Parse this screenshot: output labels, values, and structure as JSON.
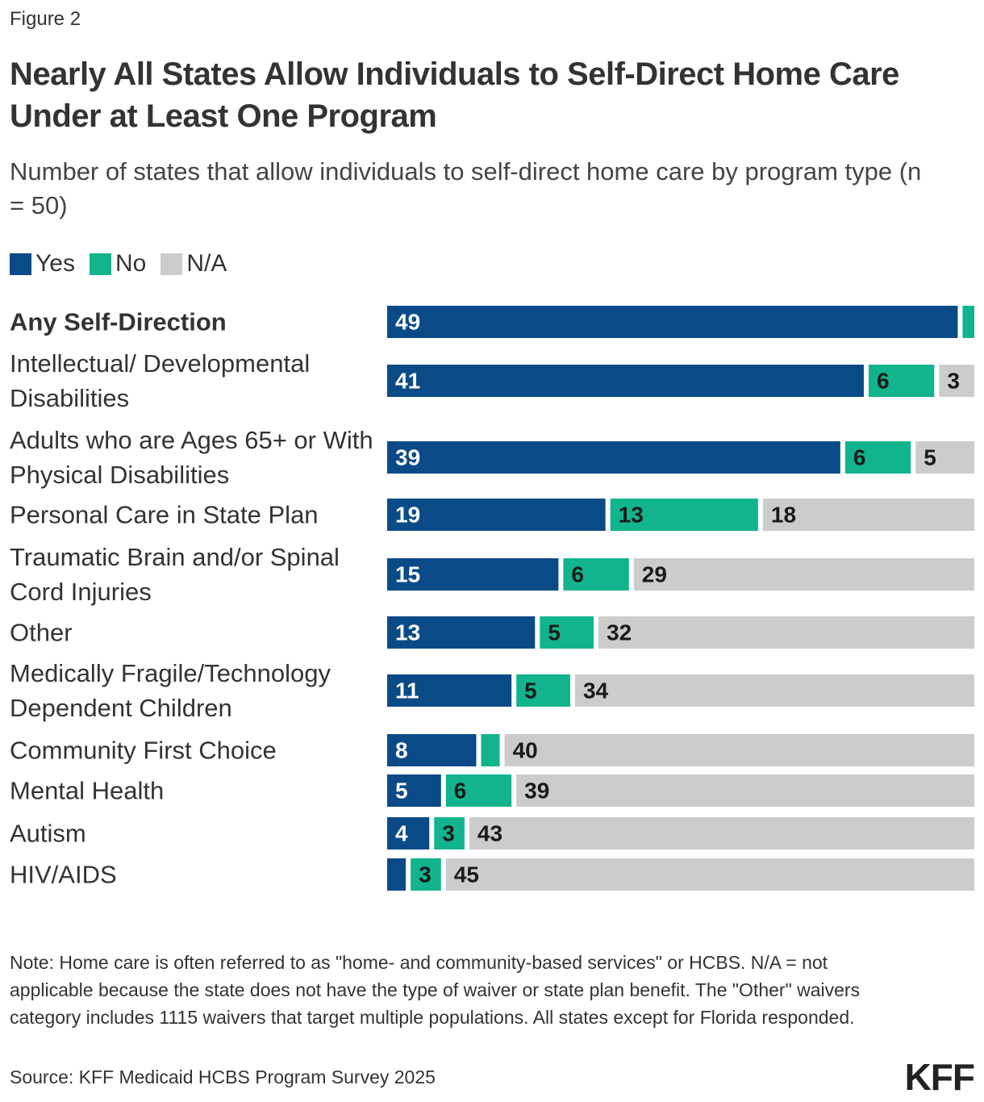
{
  "chart_data": {
    "type": "bar",
    "orientation": "horizontal",
    "stacked": true,
    "figure_label": "Figure 2",
    "title": "Nearly All States Allow Individuals to Self-Direct Home Care Under at Least One Program",
    "subtitle": "Number of states that allow individuals to self-direct home care by program type (n = 50)",
    "categories": [
      "Any Self-Direction",
      "Intellectual/ Developmental Disabilities",
      "Adults who are Ages 65+ or With Physical Disabilities",
      "Personal Care in State Plan",
      "Traumatic Brain and/or Spinal Cord Injuries",
      "Other",
      "Medically Fragile/Technology Dependent Children",
      "Community First Choice",
      "Mental Health",
      "Autism",
      "HIV/AIDS"
    ],
    "xlim": [
      0,
      50
    ],
    "series": [
      {
        "name": "Yes",
        "color": "#0a4a87",
        "label_color": "#ffffff",
        "values": [
          49,
          41,
          39,
          19,
          15,
          13,
          11,
          8,
          5,
          4,
          2
        ],
        "value_labels": [
          "49",
          "41",
          "39",
          "19",
          "15",
          "13",
          "11",
          "8",
          "5",
          "4",
          null
        ]
      },
      {
        "name": "No",
        "color": "#12b48e",
        "label_color": "#1a1a1a",
        "values": [
          1,
          6,
          6,
          13,
          6,
          5,
          5,
          2,
          6,
          3,
          3
        ],
        "value_labels": [
          null,
          "6",
          "6",
          "13",
          "6",
          "5",
          "5",
          null,
          "6",
          "3",
          "3"
        ]
      },
      {
        "name": "N/A",
        "color": "#cccccc",
        "label_color": "#1a1a1a",
        "values": [
          0,
          3,
          5,
          18,
          29,
          32,
          34,
          40,
          39,
          43,
          45
        ],
        "value_labels": [
          null,
          "3",
          "5",
          "18",
          "29",
          "32",
          "34",
          "40",
          "39",
          "43",
          "45"
        ]
      }
    ],
    "legend": "top-left",
    "note": "Note: Home care is often referred to as \"home- and community-based services\" or HCBS. N/A = not applicable because the state does not have the type of waiver or state plan benefit. The \"Other\" waivers category includes 1115 waivers that target multiple populations. All states except for Florida responded.",
    "source": "Source: KFF Medicaid HCBS Program Survey 2025",
    "logo": "KFF"
  }
}
